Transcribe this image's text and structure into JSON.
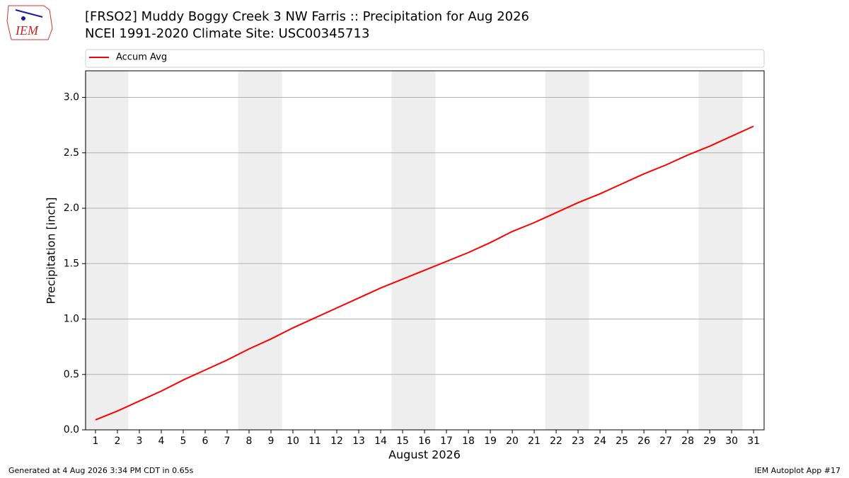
{
  "logo": "IEM",
  "footer_left": "Generated at 4 Aug 2026 3:34 PM CDT in 0.65s",
  "footer_right": "IEM Autoplot App #17",
  "chart_data": {
    "type": "line",
    "title": "[FRSO2] Muddy Boggy Creek 3 NW Farris :: Precipitation for Aug 2026",
    "subtitle": "NCEI 1991-2020 Climate Site: USC00345713",
    "x_label": "August 2026",
    "y_label": "Precipitation [inch]",
    "x": [
      1,
      2,
      3,
      4,
      5,
      6,
      7,
      8,
      9,
      10,
      11,
      12,
      13,
      14,
      15,
      16,
      17,
      18,
      19,
      20,
      21,
      22,
      23,
      24,
      25,
      26,
      27,
      28,
      29,
      30,
      31
    ],
    "series": [
      {
        "name": "Accum Avg",
        "color": "#ff0000",
        "values": [
          0.09,
          0.17,
          0.26,
          0.35,
          0.45,
          0.54,
          0.63,
          0.73,
          0.82,
          0.92,
          1.01,
          1.1,
          1.19,
          1.28,
          1.36,
          1.44,
          1.52,
          1.6,
          1.69,
          1.79,
          1.87,
          1.96,
          2.05,
          2.13,
          2.22,
          2.31,
          2.39,
          2.48,
          2.56,
          2.65,
          2.74
        ]
      }
    ],
    "xlim": [
      0.55,
      31.48
    ],
    "ylim": [
      0,
      3.24
    ],
    "xticks": [
      1,
      2,
      3,
      4,
      5,
      6,
      7,
      8,
      9,
      10,
      11,
      12,
      13,
      14,
      15,
      16,
      17,
      18,
      19,
      20,
      21,
      22,
      23,
      24,
      25,
      26,
      27,
      28,
      29,
      30,
      31
    ],
    "yticks": [
      {
        "value": 0,
        "label": "0.0"
      },
      0.5,
      {
        "value": 1,
        "label": "1.0"
      },
      1.5,
      {
        "value": 2,
        "label": "2.0"
      },
      2.5,
      {
        "value": 3,
        "label": "3.0"
      }
    ],
    "shaded_days": [
      [
        1,
        2
      ],
      [
        8,
        9
      ],
      [
        15,
        16
      ],
      [
        22,
        23
      ],
      [
        29,
        30
      ]
    ],
    "shade_color": "#eeeeee",
    "grid": true,
    "legend": "top"
  }
}
